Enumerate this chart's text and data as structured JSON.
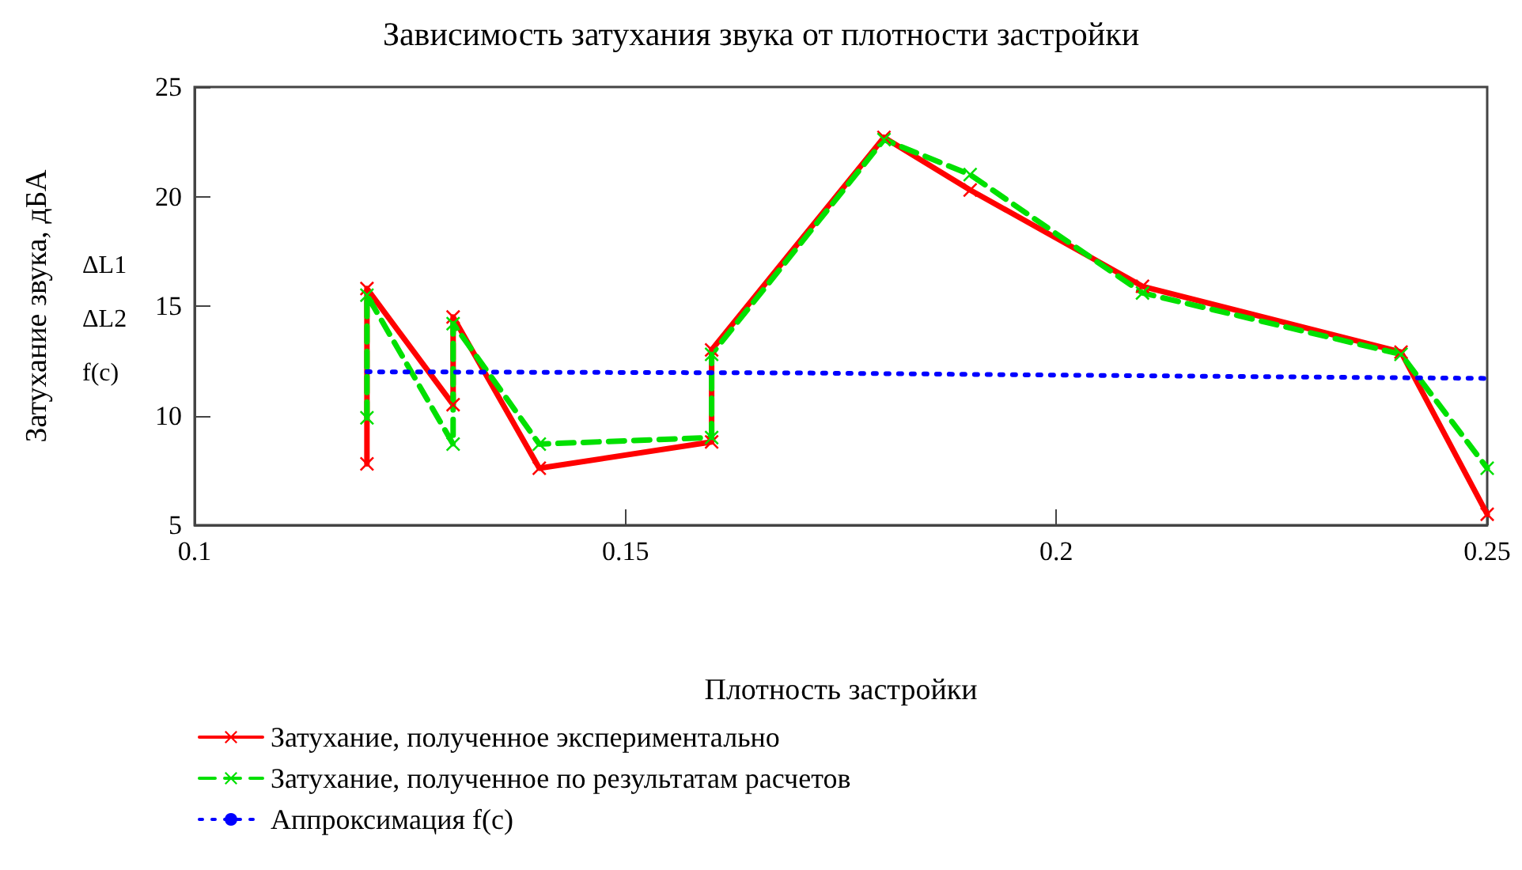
{
  "chart_data": {
    "type": "line",
    "title": "Зависимость затухания звука от плотности застройки",
    "xlabel": "Плотность застройки",
    "ylabel": "Затухание звука, дБА",
    "annotations": [
      "ΔL1",
      "ΔL2",
      "f(c)"
    ],
    "series": [
      {
        "name": "Затухание, полученное экспериментально",
        "color": "#ff0000",
        "marker": "cross",
        "line_style": "solid",
        "x": [
          0.12,
          0.12,
          0.13,
          0.13,
          0.14,
          0.16,
          0.16,
          0.18,
          0.19,
          0.21,
          0.24,
          0.25
        ],
        "values": [
          7.8,
          15.8,
          10.5,
          14.5,
          7.6,
          8.8,
          13.0,
          22.7,
          20.3,
          15.9,
          12.9,
          5.5
        ]
      },
      {
        "name": "Затухание, полученное по результатам расчетов",
        "color": "#00e000",
        "marker": "cross",
        "line_style": "dashed",
        "x": [
          0.12,
          0.12,
          0.13,
          0.13,
          0.14,
          0.16,
          0.16,
          0.18,
          0.19,
          0.21,
          0.24,
          0.25
        ],
        "values": [
          9.9,
          15.5,
          8.7,
          14.2,
          8.7,
          9.0,
          12.8,
          22.6,
          21.0,
          15.6,
          12.8,
          7.6
        ]
      },
      {
        "name": "Аппроксимация f(c)",
        "color": "#0000ff",
        "marker": "none",
        "line_style": "dotted",
        "x": [
          0.12,
          0.17,
          0.2,
          0.25
        ],
        "values": [
          12.0,
          11.95,
          11.85,
          11.7
        ]
      }
    ],
    "xlim": [
      0.1,
      0.25
    ],
    "xticks": [
      0.1,
      0.15,
      0.2,
      0.25
    ],
    "ylim": [
      5,
      25
    ],
    "yticks": [
      5,
      10,
      15,
      20,
      25
    ],
    "grid": false,
    "legend": "bottom"
  }
}
